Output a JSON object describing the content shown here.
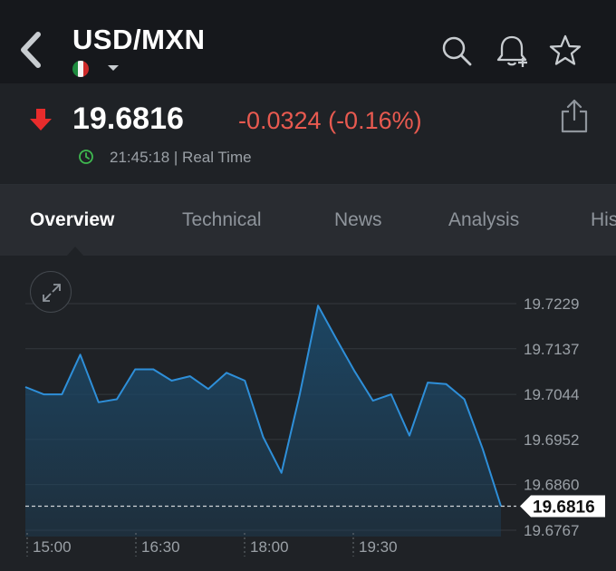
{
  "header": {
    "back_icon": "chevron-left-icon",
    "title": "USD/MXN",
    "flag_icon": "mexico-flag-icon",
    "actions": [
      {
        "name": "search-icon"
      },
      {
        "name": "bell-plus-icon"
      },
      {
        "name": "star-icon"
      }
    ]
  },
  "quote": {
    "direction_icon": "arrow-down-icon",
    "price": "19.6816",
    "change": "-0.0324 (-0.16%)",
    "time": "21:45:18 | Real Time",
    "colors": {
      "down": "#e82c2c",
      "change_text": "#e85a50",
      "clock": "#3fb950"
    }
  },
  "tabs": [
    {
      "label": "Overview",
      "active": true
    },
    {
      "label": "Technical",
      "active": false
    },
    {
      "label": "News",
      "active": false
    },
    {
      "label": "Analysis",
      "active": false
    },
    {
      "label": "His",
      "active": false
    }
  ],
  "chart_data": {
    "type": "area",
    "x_labels": [
      "15:00",
      "16:30",
      "18:00",
      "19:30"
    ],
    "y_ticks": [
      "19.7229",
      "19.7137",
      "19.7044",
      "19.6952",
      "19.6860",
      "19.6767"
    ],
    "ylim": [
      19.6767,
      19.7229
    ],
    "current_value": "19.6816",
    "current": 19.6816,
    "values": [
      19.7059,
      19.7044,
      19.7044,
      19.7125,
      19.7028,
      19.7034,
      19.7095,
      19.7095,
      19.7072,
      19.7081,
      19.7055,
      19.7088,
      19.7072,
      19.6957,
      19.6884,
      19.7044,
      19.7225,
      19.7157,
      19.7091,
      19.7031,
      19.7044,
      19.696,
      19.7068,
      19.7065,
      19.7034,
      19.6933,
      19.6816
    ],
    "grid": true,
    "colors": {
      "line": "#2e8fd9",
      "fill": "#1c4766",
      "marker_bg": "#ffffff"
    }
  }
}
